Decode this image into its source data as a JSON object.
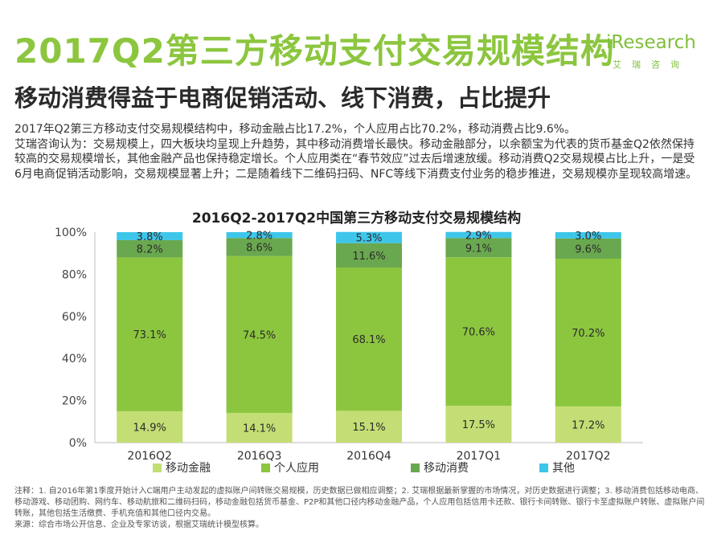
{
  "header": {
    "title": "2017Q2第三方移动支付交易规模结构",
    "subtitle": "移动消费得益于电商促销活动、线下消费，占比提升"
  },
  "logo": {
    "word": "iResearch",
    "sub": "艾瑞咨询"
  },
  "body": {
    "line1": "2017年Q2第三方移动支付交易规模结构中，移动金融占比17.2%，个人应用占比70.2%，移动消费占比9.6%。",
    "paragraph": "艾瑞咨询认为：交易规模上，四大板块均呈现上升趋势，其中移动消费增长最快。移动金融部分，以余额宝为代表的货币基金Q2依然保持较高的交易规模增长，其他金融产品也保持稳定增长。个人应用类在“春节效应”过去后增速放缓。移动消费Q2交易规模占比上升，一是受6月电商促销活动影响，交易规模显著上升；二是随着线下二维码扫码、NFC等线下消费支付业务的稳步推进，交易规模亦呈现较高增速。"
  },
  "colors": {
    "title_green": "#8cc63f",
    "series": [
      "#c3de74",
      "#8cc63f",
      "#6aa84f",
      "#3ec6ea"
    ]
  },
  "chart_data": {
    "type": "stacked_bar",
    "title": "2016Q2-2017Q2中国第三方移动支付交易规模结构",
    "categories": [
      "2016Q2",
      "2016Q3",
      "2016Q4",
      "2017Q1",
      "2017Q2"
    ],
    "y_ticks": [
      "0%",
      "20%",
      "40%",
      "60%",
      "80%",
      "100%"
    ],
    "ylim": [
      0,
      100
    ],
    "series": [
      {
        "name": "移动金融",
        "values": [
          14.9,
          14.1,
          15.1,
          17.5,
          17.2
        ],
        "labels": [
          "14.9%",
          "14.1%",
          "15.1%",
          "17.5%",
          "17.2%"
        ]
      },
      {
        "name": "个人应用",
        "values": [
          73.1,
          74.5,
          68.1,
          70.6,
          70.2
        ],
        "labels": [
          "73.1%",
          "74.5%",
          "68.1%",
          "70.6%",
          "70.2%"
        ]
      },
      {
        "name": "移动消费",
        "values": [
          8.2,
          8.6,
          11.6,
          9.1,
          9.6
        ],
        "labels": [
          "8.2%",
          "8.6%",
          "11.6%",
          "9.1%",
          "9.6%"
        ]
      },
      {
        "name": "其他",
        "values": [
          3.8,
          2.8,
          5.3,
          2.9,
          3.0
        ],
        "labels": [
          "3.8%",
          "2.8%",
          "5.3%",
          "2.9%",
          "3.0%"
        ]
      }
    ],
    "legend_position": "bottom"
  },
  "notes": {
    "note": "注释：1. 自2016年第1季度开始计入C端用户主动发起的虚拟账户间转账交易规模，历史数据已做相应调整；2. 艾瑞根据最新掌握的市场情况，对历史数据进行调整；3. 移动消费包括移动电商、移动游戏、移动团购、网约车、移动航旅和二维码扫码，移动金融包括货币基金、P2P和其他口径内移动金融产品，个人应用包括信用卡还款、银行卡间转账、银行卡至虚拟账户转账、虚拟账户间转账，其他包括生活缴费、手机充值和其他口径内交易。",
    "source": "来源：综合市场公开信息、企业及专家访谈，根据艾瑞统计模型核算。"
  }
}
